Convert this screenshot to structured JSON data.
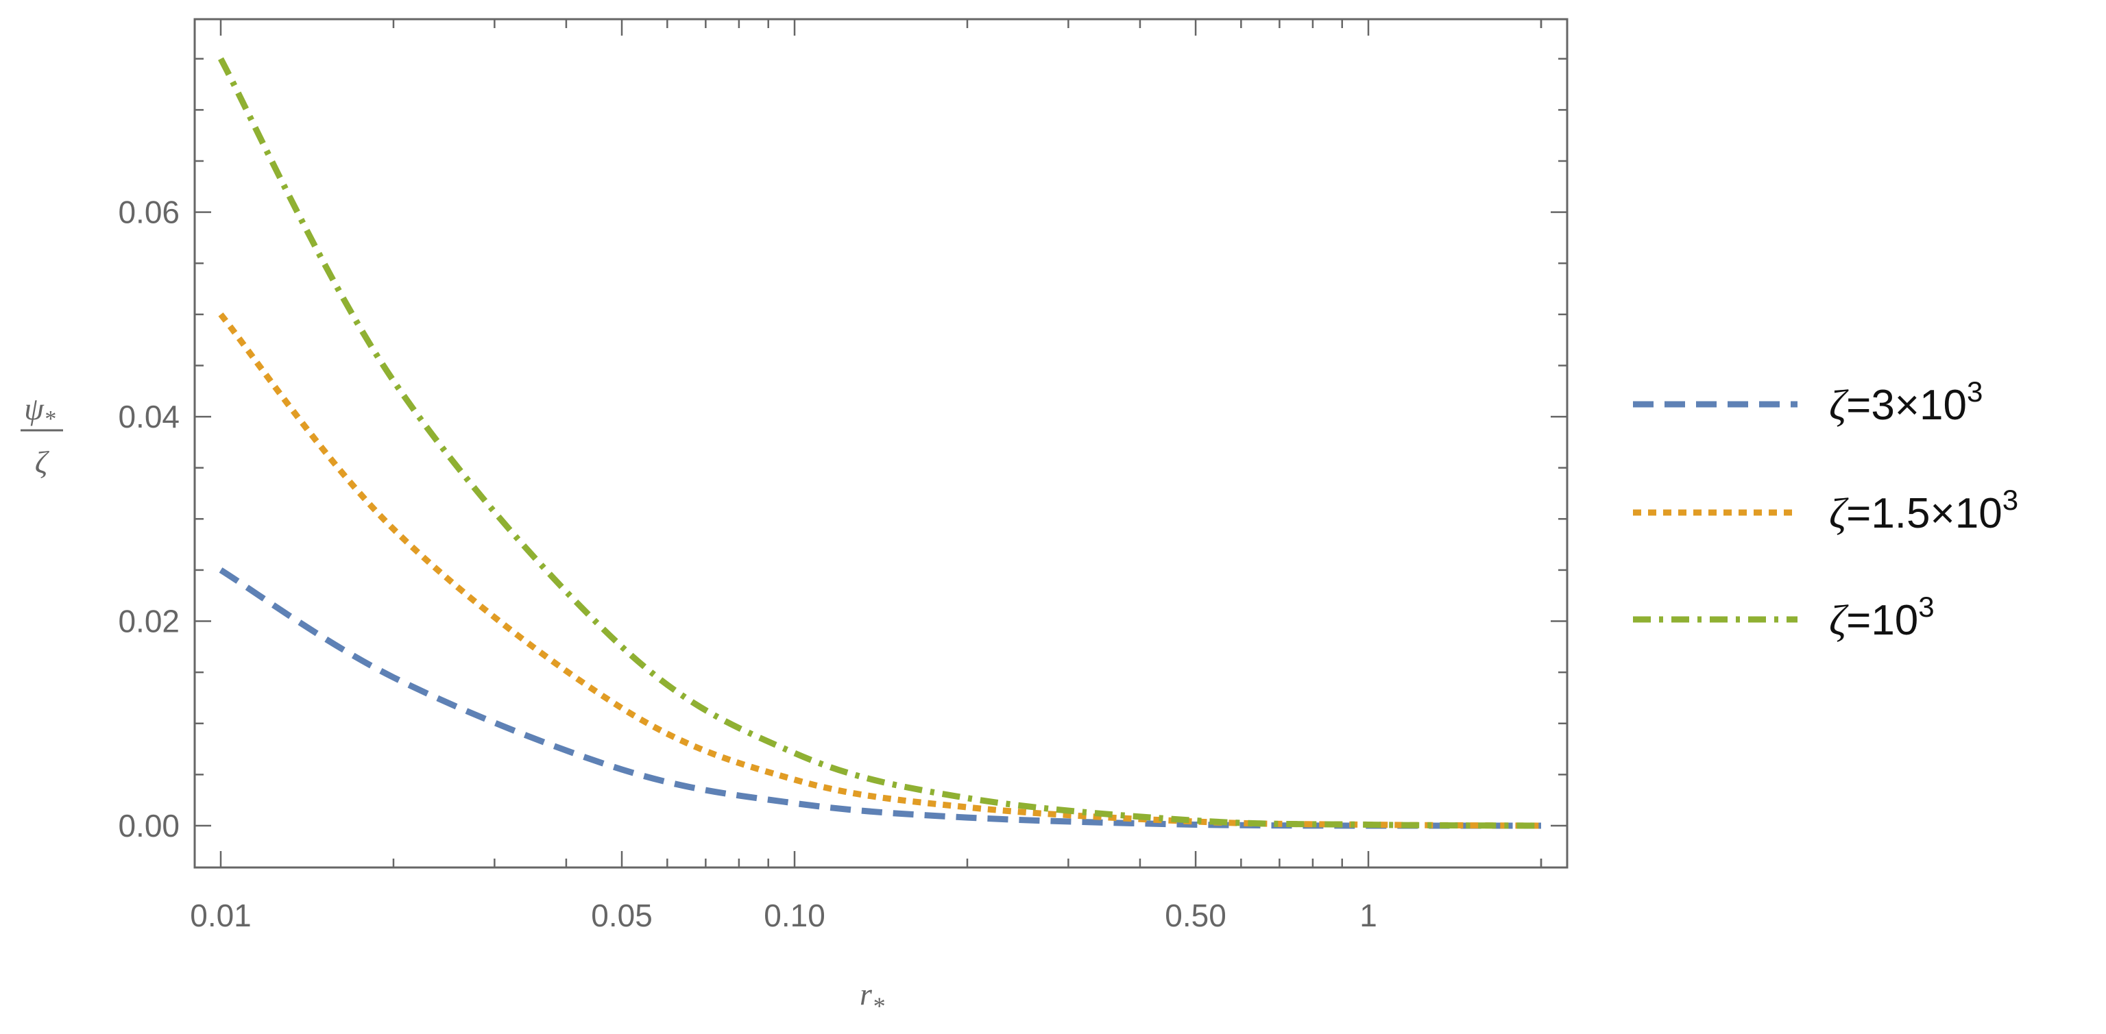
{
  "chart_data": {
    "type": "line",
    "xscale": "log",
    "xlim": [
      0.01,
      2
    ],
    "ylim": [
      0,
      0.07
    ],
    "xticks": [
      {
        "value": 0.01,
        "label": "0.01"
      },
      {
        "value": 0.05,
        "label": "0.05"
      },
      {
        "value": 0.1,
        "label": "0.10"
      },
      {
        "value": 0.5,
        "label": "0.50"
      },
      {
        "value": 1,
        "label": "1"
      }
    ],
    "yticks": [
      {
        "value": 0.0,
        "label": "0.00"
      },
      {
        "value": 0.02,
        "label": "0.02"
      },
      {
        "value": 0.04,
        "label": "0.04"
      },
      {
        "value": 0.06,
        "label": "0.06"
      }
    ],
    "xlabel": {
      "base": "r",
      "subscript": "*"
    },
    "ylabel": {
      "numerator": "ψ",
      "numerator_subscript": "*",
      "denominator": "ζ"
    },
    "legend_position": "right",
    "x": [
      0.01,
      0.02,
      0.05,
      0.1,
      0.2,
      0.5,
      1,
      2
    ],
    "series": [
      {
        "name": "ζ=3×10³",
        "label_parts": {
          "symbol": "ζ",
          "mantissa": "=3×10",
          "exponent": "3"
        },
        "color": "#5E81B5",
        "style": "dashed",
        "values": [
          0.025,
          0.0145,
          0.0055,
          0.0022,
          0.0008,
          0.0001,
          0.0,
          0.0
        ]
      },
      {
        "name": "ζ=1.5×10³",
        "label_parts": {
          "symbol": "ζ",
          "mantissa": "=1.5×10",
          "exponent": "3"
        },
        "color": "#E19C24",
        "style": "dotted",
        "values": [
          0.05,
          0.029,
          0.0115,
          0.0045,
          0.0018,
          0.0004,
          0.0001,
          0.0
        ]
      },
      {
        "name": "ζ=10³",
        "label_parts": {
          "symbol": "ζ",
          "mantissa": "=10",
          "exponent": "3"
        },
        "color": "#8FB032",
        "style": "dash-dot",
        "values": [
          0.075,
          0.0435,
          0.0175,
          0.0071,
          0.0027,
          0.0005,
          0.0001,
          0.0
        ]
      }
    ]
  }
}
